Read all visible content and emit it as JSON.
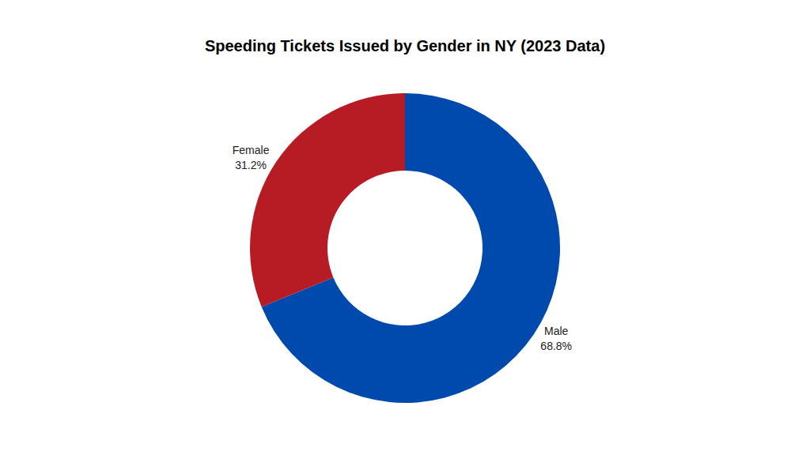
{
  "chart_data": {
    "type": "pie",
    "title": "Speeding Tickets Issued by Gender in NY (2023 Data)",
    "categories": [
      "Male",
      "Female"
    ],
    "values": [
      68.8,
      31.2
    ],
    "value_labels": [
      "68.8%",
      "31.2%"
    ],
    "colors": [
      "#004aad",
      "#b71c24"
    ],
    "data_labels": true
  }
}
